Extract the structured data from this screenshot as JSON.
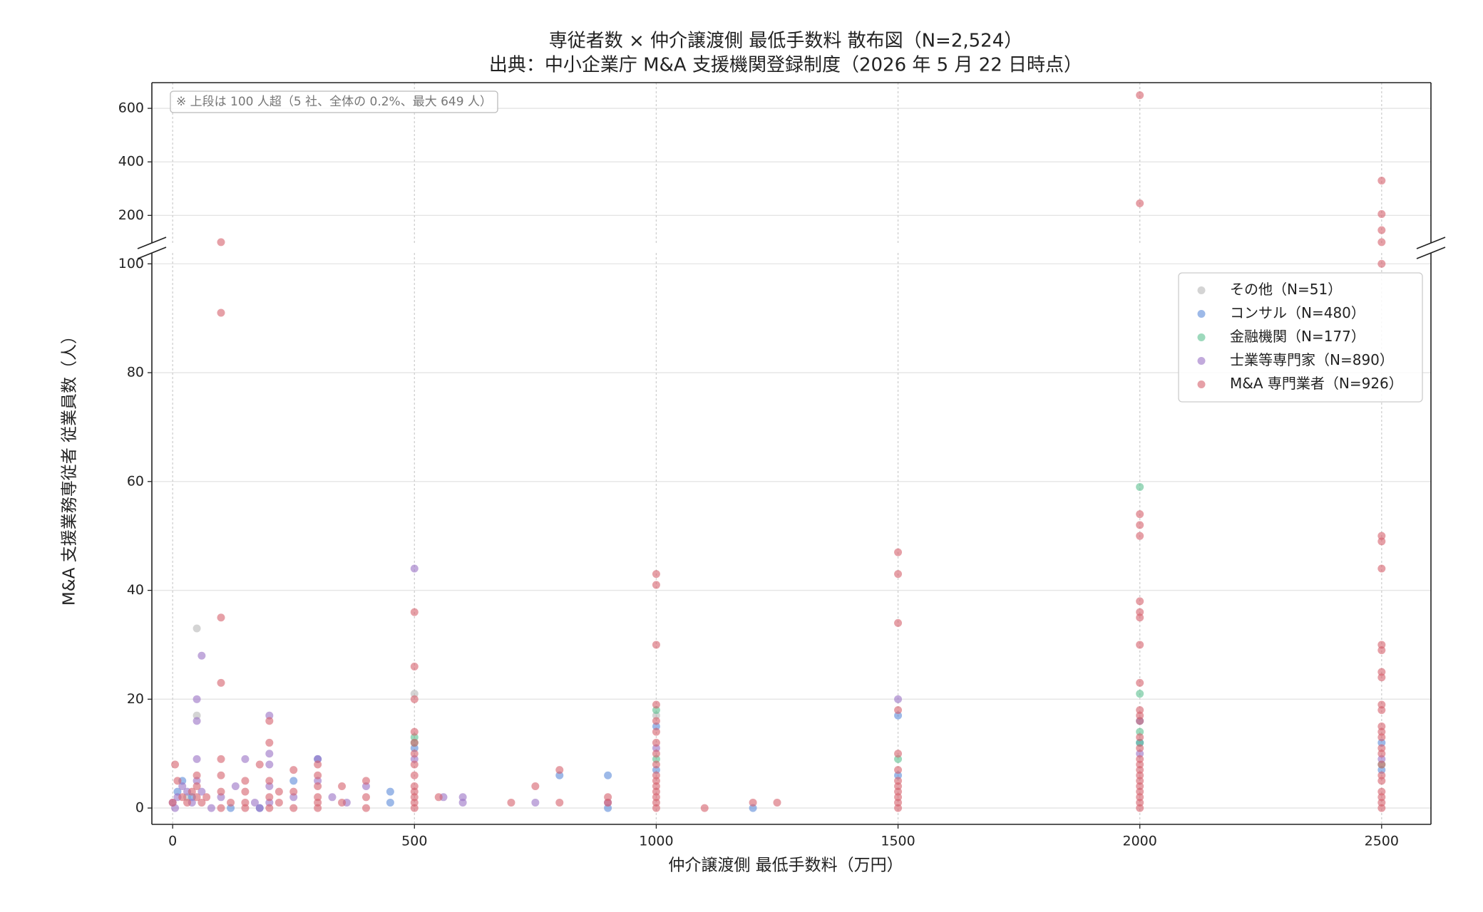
{
  "chart_data": [
    {
      "type": "scatter",
      "title": "専従者数 × 仲介譲渡側 最低手数料 散布図（N=2,524）",
      "subtitle": "出典：中小企業庁 M&A 支援機関登録制度（2026 年 5 月 22 日時点）",
      "annotation": "※ 上段は 100 人超（5 社、全体の 0.2%、最大 649 人）",
      "xlim": [
        -43,
        2602
      ],
      "xticks": [
        0,
        500,
        1000,
        1500,
        2000,
        2500
      ],
      "ylim": [
        97,
        696
      ],
      "yticks": [
        200,
        400,
        600
      ],
      "grid": true,
      "series": [
        {
          "color": "#d6606d",
          "x": [
            2000,
            2000,
            2500,
            2500,
            2500,
            100,
            2500
          ],
          "values": [
            649,
            245,
            330,
            205,
            145,
            100,
            100
          ]
        }
      ]
    },
    {
      "type": "scatter",
      "xlabel": "仲介譲渡側 最低手数料（万円）",
      "ylabel": "M&A 支援業務専従者 従業員数（人）",
      "xlim": [
        -43,
        2602
      ],
      "xticks": [
        0,
        500,
        1000,
        1500,
        2000,
        2500
      ],
      "ylim": [
        -3,
        102
      ],
      "yticks": [
        0,
        20,
        40,
        60,
        80,
        100
      ],
      "grid": true,
      "legend": "upper right",
      "series": [
        {
          "name": "その他（N=51）",
          "color": "#b8b8b8",
          "x": [
            50,
            50,
            500,
            30,
            1000
          ],
          "values": [
            33,
            17,
            21,
            2,
            17
          ]
        },
        {
          "name": "コンサル（N=480）",
          "color": "#5b8bd9",
          "x": [
            10,
            20,
            40,
            120,
            180,
            250,
            300,
            450,
            450,
            500,
            800,
            900,
            900,
            1000,
            1000,
            1200,
            1500,
            1500,
            2000,
            2000,
            2500,
            2500
          ],
          "values": [
            3,
            5,
            2,
            0,
            0,
            5,
            9,
            3,
            1,
            11,
            6,
            6,
            0,
            15,
            7,
            0,
            17,
            6,
            16,
            12,
            12,
            7
          ]
        },
        {
          "name": "金融機関（N=177）",
          "color": "#5cbf8f",
          "x": [
            500,
            500,
            1000,
            1000,
            1500,
            2000,
            2000,
            2000,
            2000,
            2500
          ],
          "values": [
            13,
            12,
            18,
            9,
            9,
            59,
            21,
            14,
            12,
            8
          ]
        },
        {
          "name": "士業等専門家（N=890）",
          "color": "#9a72c4",
          "x": [
            0,
            5,
            10,
            20,
            30,
            40,
            50,
            50,
            50,
            50,
            60,
            60,
            80,
            100,
            130,
            150,
            170,
            180,
            200,
            200,
            200,
            200,
            200,
            250,
            300,
            300,
            330,
            360,
            400,
            500,
            500,
            560,
            600,
            600,
            750,
            900,
            1000,
            1500,
            2000,
            2500
          ],
          "values": [
            1,
            0,
            2,
            4,
            3,
            1,
            20,
            16,
            9,
            5,
            28,
            3,
            0,
            2,
            4,
            9,
            1,
            0,
            17,
            10,
            8,
            4,
            1,
            2,
            9,
            5,
            2,
            1,
            4,
            44,
            9,
            2,
            2,
            1,
            1,
            1,
            11,
            20,
            10,
            9
          ]
        },
        {
          "name": "M&A 専門業者（N=926）",
          "color": "#d6606d",
          "x": [
            0,
            5,
            10,
            20,
            30,
            40,
            50,
            50,
            50,
            60,
            70,
            100,
            100,
            100,
            100,
            100,
            100,
            100,
            120,
            150,
            150,
            150,
            150,
            180,
            200,
            200,
            200,
            200,
            200,
            220,
            220,
            250,
            250,
            250,
            300,
            300,
            300,
            300,
            300,
            300,
            350,
            350,
            400,
            400,
            400,
            500,
            500,
            500,
            500,
            500,
            500,
            500,
            500,
            500,
            500,
            500,
            500,
            500,
            550,
            700,
            750,
            800,
            800,
            900,
            900,
            1000,
            1000,
            1000,
            1000,
            1000,
            1000,
            1000,
            1000,
            1000,
            1000,
            1000,
            1000,
            1000,
            1000,
            1000,
            1000,
            1100,
            1200,
            1250,
            1500,
            1500,
            1500,
            1500,
            1500,
            1500,
            1500,
            1500,
            1500,
            1500,
            1500,
            1500,
            2000,
            2000,
            2000,
            2000,
            2000,
            2000,
            2000,
            2000,
            2000,
            2000,
            2000,
            2000,
            2000,
            2000,
            2000,
            2000,
            2000,
            2000,
            2000,
            2000,
            2000,
            2000,
            2000,
            2500,
            2500,
            2500,
            2500,
            2500,
            2500,
            2500,
            2500,
            2500,
            2500,
            2500,
            2500,
            2500,
            2500,
            2500,
            2500,
            2500,
            2500,
            2500,
            2500,
            2500,
            2500
          ],
          "values": [
            1,
            8,
            5,
            2,
            1,
            3,
            6,
            4,
            2,
            1,
            2,
            91,
            35,
            23,
            9,
            6,
            3,
            0,
            1,
            5,
            3,
            1,
            0,
            8,
            16,
            12,
            5,
            2,
            0,
            3,
            1,
            7,
            3,
            0,
            8,
            6,
            4,
            2,
            1,
            0,
            4,
            1,
            5,
            2,
            0,
            36,
            26,
            20,
            14,
            12,
            10,
            8,
            6,
            4,
            3,
            2,
            1,
            0,
            2,
            1,
            4,
            7,
            1,
            2,
            1,
            43,
            41,
            30,
            19,
            16,
            14,
            12,
            10,
            8,
            6,
            5,
            4,
            3,
            2,
            1,
            0,
            0,
            1,
            1,
            47,
            43,
            34,
            18,
            10,
            7,
            5,
            4,
            3,
            2,
            1,
            0,
            54,
            52,
            50,
            38,
            36,
            35,
            30,
            23,
            18,
            17,
            16,
            13,
            11,
            9,
            8,
            7,
            6,
            5,
            4,
            3,
            2,
            1,
            0,
            100,
            50,
            49,
            44,
            30,
            29,
            25,
            24,
            19,
            18,
            15,
            14,
            13,
            11,
            10,
            8,
            6,
            5,
            3,
            2,
            1,
            0
          ]
        }
      ]
    }
  ]
}
